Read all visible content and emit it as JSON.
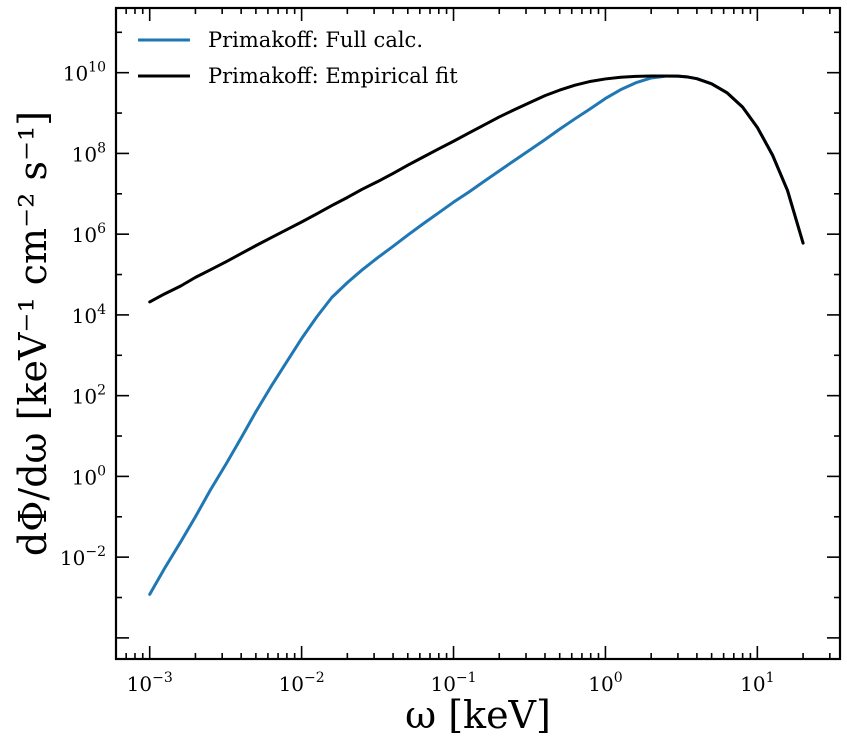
{
  "chart_data": {
    "type": "line",
    "x_scale": "log",
    "y_scale": "log",
    "xlim": [
      0.0006,
      35
    ],
    "ylim": [
      3e-05,
      400000000000
    ],
    "xlabel": "ω [keV]",
    "ylabel": "dΦ/dω [keV⁻¹ cm⁻² s⁻¹]",
    "xticks": [
      {
        "value": 0.001,
        "base": "10",
        "exp": "−3"
      },
      {
        "value": 0.01,
        "base": "10",
        "exp": "−2"
      },
      {
        "value": 0.1,
        "base": "10",
        "exp": "−1"
      },
      {
        "value": 1,
        "base": "10",
        "exp": "0"
      },
      {
        "value": 10,
        "base": "10",
        "exp": "1"
      }
    ],
    "yticks": [
      {
        "value": 0.01,
        "base": "10",
        "exp": "−2"
      },
      {
        "value": 1,
        "base": "10",
        "exp": "0"
      },
      {
        "value": 100,
        "base": "10",
        "exp": "2"
      },
      {
        "value": 10000,
        "base": "10",
        "exp": "4"
      },
      {
        "value": 1000000,
        "base": "10",
        "exp": "6"
      },
      {
        "value": 100000000,
        "base": "10",
        "exp": "8"
      },
      {
        "value": 10000000000,
        "base": "10",
        "exp": "10"
      }
    ],
    "grid": false,
    "legend_position": "top-left",
    "series": [
      {
        "name": "Primakoff: Full calc.",
        "color": "#1f77b4",
        "x": [
          0.001,
          0.00125,
          0.0016,
          0.002,
          0.0025,
          0.0032,
          0.004,
          0.005,
          0.0063,
          0.008,
          0.01,
          0.0126,
          0.0158,
          0.02,
          0.025,
          0.0316,
          0.04,
          0.05,
          0.063,
          0.08,
          0.1,
          0.126,
          0.158,
          0.2,
          0.25,
          0.316,
          0.4,
          0.5,
          0.63,
          0.8,
          1.0,
          1.26,
          1.58,
          2.0,
          2.5,
          3.0,
          3.5,
          4.0,
          5.0,
          6.3,
          8.0,
          10.0,
          12.6,
          15.8,
          20.0
        ],
        "y": [
          0.0012,
          0.0052,
          0.024,
          0.1,
          0.45,
          2.1,
          9.0,
          40,
          170,
          700,
          2600,
          9000,
          27000,
          63000,
          130000,
          260000,
          500000,
          950000,
          1800000,
          3400000,
          6200000,
          11000000,
          20000000,
          37000000,
          66000000,
          120000000,
          220000000,
          400000000,
          720000000,
          1300000000,
          2300000000,
          3800000000,
          5600000000,
          7400000000,
          8200000000,
          8200000000,
          7800000000,
          7100000000,
          5300000000,
          3200000000,
          1400000000,
          440000000,
          90000000,
          12000000,
          600000
        ]
      },
      {
        "name": "Primakoff: Empirical fit",
        "color": "#000000",
        "x": [
          0.001,
          0.00125,
          0.0016,
          0.002,
          0.0025,
          0.0032,
          0.004,
          0.005,
          0.0063,
          0.008,
          0.01,
          0.0126,
          0.0158,
          0.02,
          0.025,
          0.0316,
          0.04,
          0.05,
          0.063,
          0.08,
          0.1,
          0.126,
          0.158,
          0.2,
          0.25,
          0.316,
          0.4,
          0.5,
          0.63,
          0.8,
          1.0,
          1.26,
          1.58,
          2.0,
          2.5,
          3.0,
          3.5,
          4.0,
          5.0,
          6.3,
          8.0,
          10.0,
          12.6,
          15.8,
          20.0
        ],
        "y": [
          21000,
          33000,
          52000,
          85000,
          130000,
          210000,
          330000,
          520000,
          820000,
          1300000,
          2000000,
          3200000,
          5100000,
          8100000,
          12900000,
          20000000,
          32000000,
          51000000,
          81000000,
          130000000,
          200000000,
          320000000,
          500000000,
          800000000,
          1200000000,
          1800000000,
          2700000000,
          3700000000,
          4900000000,
          6100000000,
          7000000000,
          7700000000,
          8100000000,
          8300000000,
          8300000000,
          8200000000,
          7800000000,
          7100000000,
          5300000000,
          3200000000,
          1400000000,
          440000000,
          90000000,
          12000000,
          600000
        ]
      }
    ]
  }
}
